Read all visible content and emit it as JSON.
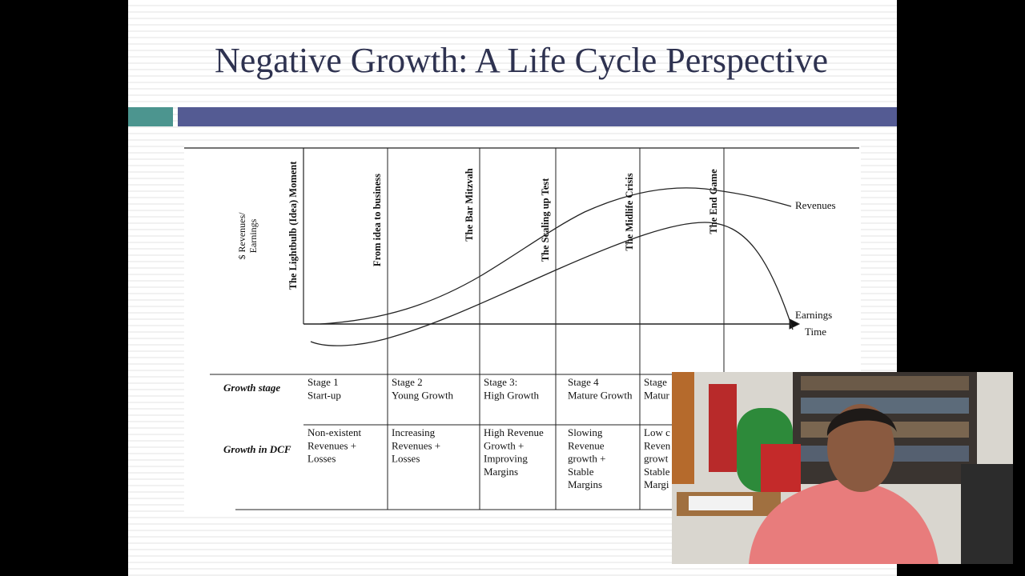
{
  "title": "Negative Growth: A Life Cycle Perspective",
  "diagram": {
    "y_axis_label": [
      "$ Revenues/",
      "Earnings"
    ],
    "x_axis_label": "Time",
    "curves": [
      "Revenues",
      "Earnings"
    ],
    "stages": [
      "The Lightbulb (Idea) Moment",
      "From idea to business",
      "The Bar Mitzvah",
      "The Scaling up Test",
      "The Midlife Crisis",
      "The End Game"
    ]
  },
  "table": {
    "row_headers": [
      "Growth stage",
      "Growth in DCF"
    ],
    "rows": [
      [
        [
          "Stage 1",
          "Start-up"
        ],
        [
          "Stage 2",
          "Young Growth"
        ],
        [
          "Stage 3:",
          "High Growth"
        ],
        [
          "Stage 4",
          "Mature Growth"
        ],
        [
          "Stage",
          "Matur"
        ]
      ],
      [
        [
          "Non-existent",
          "Revenues +",
          "Losses"
        ],
        [
          "Increasing",
          "Revenues +",
          "Losses"
        ],
        [
          "High Revenue",
          "Growth +",
          "Improving",
          "Margins"
        ],
        [
          "Slowing",
          "Revenue",
          "growth +",
          "Stable",
          "Margins"
        ],
        [
          "Low c",
          "Reven",
          "growt",
          "Stable",
          "Margi"
        ]
      ]
    ]
  }
}
